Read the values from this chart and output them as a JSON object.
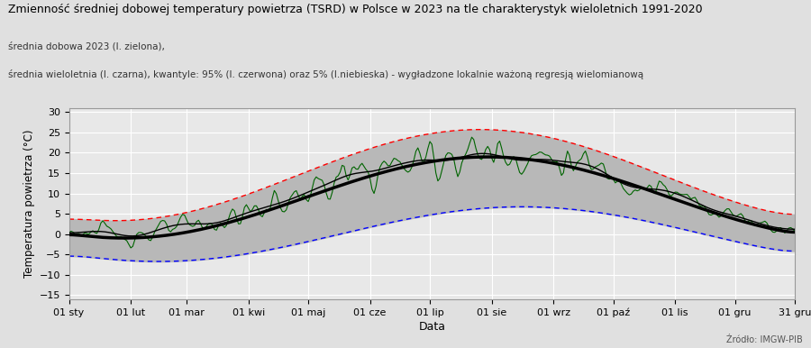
{
  "title": "Zmienność średniej dobowej temperatury powietrza (TSRD) w Polsce w 2023 na tle charakterystyk wieloletnich 1991-2020",
  "subtitle1": "średnia dobowa 2023 (l. zielona),",
  "subtitle2": "średnia wieloletnia (l. czarna), kwantyle: 95% (l. czerwona) oraz 5% (l.niebieska) - wygładzone lokalnie ważoną regresją wielomianową",
  "xlabel": "Data",
  "ylabel": "Temperatura powietrza (°C)",
  "source": "Źródło: IMGW-PIB",
  "ylim": [
    -16,
    31
  ],
  "yticks": [
    -15,
    -10,
    -5,
    0,
    5,
    10,
    15,
    20,
    25,
    30
  ],
  "xtick_labels": [
    "01 sty",
    "01 lut",
    "01 mar",
    "01 kwi",
    "01 maj",
    "01 cze",
    "01 lip",
    "01 sie",
    "01 wrz",
    "01 paź",
    "01 lis",
    "01 gru",
    "31 gru"
  ],
  "bg_color": "#e0e0e0",
  "plot_bg_color": "#e8e8e8",
  "grid_color": "#ffffff",
  "mean_color": "#000000",
  "q95_color": "#ff0000",
  "q05_color": "#0000ff",
  "daily_color": "#006400",
  "fill_color": "#b8b8b8"
}
